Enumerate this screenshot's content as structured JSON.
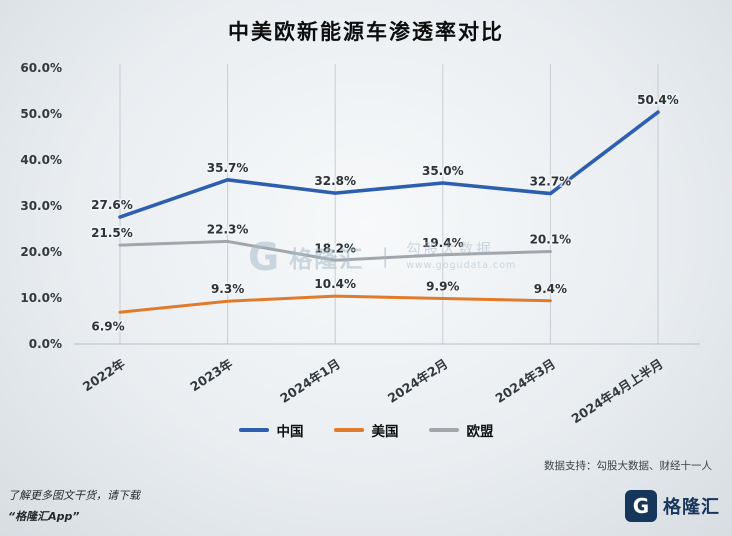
{
  "page": {
    "title": "中美欧新能源车渗透率对比",
    "source_note": "数据支持：勾股大数据、财经十一人",
    "footer_left_line1": "了解更多图文干货，请下载",
    "footer_left_line2": "“格隆汇App”",
    "brand_name": "格隆汇",
    "brand_initial": "G",
    "watermark": {
      "brand": "格隆汇",
      "text": "勾股大数据",
      "url": "www.gogudata.com"
    }
  },
  "chart_data": {
    "type": "line",
    "title": "中美欧新能源车渗透率对比",
    "categories": [
      "2022年",
      "2023年",
      "2024年1月",
      "2024年2月",
      "2024年3月",
      "2024年4月上半月"
    ],
    "ylim": [
      0,
      60
    ],
    "ytick_step": 10,
    "ytick_labels": [
      "0.0%",
      "10.0%",
      "20.0%",
      "30.0%",
      "40.0%",
      "50.0%",
      "60.0%"
    ],
    "grid": "vertical",
    "legend_position": "bottom",
    "series": [
      {
        "name": "中国",
        "color": "#2e5fae",
        "values": [
          27.6,
          35.7,
          32.8,
          35.0,
          32.7,
          50.4
        ]
      },
      {
        "name": "美国",
        "color": "#df7b2a",
        "values": [
          6.9,
          9.3,
          10.4,
          9.9,
          9.4,
          null
        ]
      },
      {
        "name": "欧盟",
        "color": "#a2a6ab",
        "values": [
          21.5,
          22.3,
          18.2,
          19.4,
          20.1,
          null
        ]
      }
    ]
  }
}
